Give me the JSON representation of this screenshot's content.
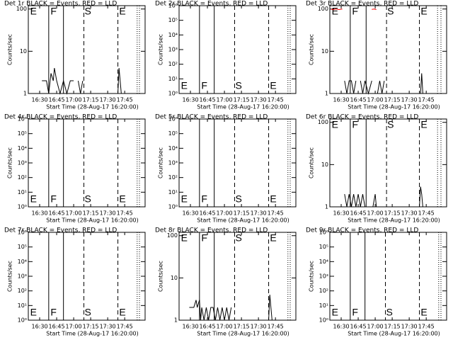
{
  "chart_data": [
    {
      "type": "line",
      "title": "Det 1r BLACK = Events, RED = LLD",
      "ylabel": "Counts/sec",
      "xlabel": "Start Time (28-Aug-17 16:20:00)",
      "log_y": true,
      "xlim": [
        0,
        103
      ],
      "xticks": [
        {
          "value": 10,
          "label": "16:30"
        },
        {
          "value": 25,
          "label": "16:45"
        },
        {
          "value": 40,
          "label": "17:00"
        },
        {
          "value": 55,
          "label": "17:15"
        },
        {
          "value": 70,
          "label": "17:30"
        },
        {
          "value": 85,
          "label": "17:45"
        }
      ],
      "ylim": [
        1,
        120
      ],
      "yticks": [
        1,
        10,
        100
      ],
      "lines": [
        {
          "x": 18,
          "style": "solid"
        },
        {
          "x": 31,
          "style": "solid"
        },
        {
          "x": 49,
          "style": "dashed"
        },
        {
          "x": 79,
          "style": "dashed"
        },
        {
          "x": 96,
          "style": "dotted"
        },
        {
          "x": 98,
          "style": "dotted"
        }
      ],
      "events": [
        {
          "label": "E",
          "x": 1
        },
        {
          "label": "F",
          "x": 19
        },
        {
          "label": "S",
          "x": 49
        },
        {
          "label": "E",
          "x": 79.5
        }
      ],
      "series": [
        {
          "color": "#000000",
          "x": [
            12,
            16,
            18,
            20,
            22,
            23,
            25,
            28,
            31,
            34,
            37,
            40,
            42,
            44,
            46,
            48,
            49,
            79,
            80,
            81,
            82
          ],
          "values": [
            2,
            2,
            1,
            3,
            2,
            4,
            2,
            1,
            2,
            1,
            2,
            2,
            null,
            2,
            1,
            2,
            null,
            1,
            4,
            2,
            1
          ]
        }
      ]
    },
    {
      "type": "line",
      "title": "Det 2r BLACK = Events, RED = LLD",
      "ylabel": "Counts/sec",
      "xlabel": "Start Time (28-Aug-17 16:20:00)",
      "log_y": true,
      "xlim": [
        0,
        103
      ],
      "xticks": [
        {
          "value": 10,
          "label": "16:30"
        },
        {
          "value": 25,
          "label": "16:45"
        },
        {
          "value": 40,
          "label": "17:00"
        },
        {
          "value": 55,
          "label": "17:15"
        },
        {
          "value": 70,
          "label": "17:30"
        },
        {
          "value": 85,
          "label": "17:45"
        }
      ],
      "ylim": [
        1,
        1000000
      ],
      "yticks": [
        {
          "value": 1,
          "label": "10⁰"
        },
        {
          "value": 10,
          "label": "10¹"
        },
        {
          "value": 100,
          "label": "10²"
        },
        {
          "value": 1000,
          "label": "10³"
        },
        {
          "value": 10000,
          "label": "10⁴"
        },
        {
          "value": 100000,
          "label": "10⁵"
        },
        {
          "value": 1000000,
          "label": "10⁶"
        }
      ],
      "lines": [
        {
          "x": 18,
          "style": "solid"
        },
        {
          "x": 31,
          "style": "solid"
        },
        {
          "x": 49,
          "style": "dashed"
        },
        {
          "x": 79,
          "style": "dashed"
        },
        {
          "x": 96,
          "style": "dotted"
        },
        {
          "x": 98,
          "style": "dotted"
        }
      ],
      "events": [
        {
          "label": "E",
          "x": 1
        },
        {
          "label": "F",
          "x": 19
        },
        {
          "label": "S",
          "x": 49
        },
        {
          "label": "E",
          "x": 79.5
        }
      ],
      "series": []
    },
    {
      "type": "line",
      "title": "Det 3r BLACK = Events, RED = LLD",
      "ylabel": "Counts/sec",
      "xlabel": "Start Time (28-Aug-17 16:20:00)",
      "log_y": true,
      "xlim": [
        0,
        103
      ],
      "xticks": [
        {
          "value": 10,
          "label": "16:30"
        },
        {
          "value": 25,
          "label": "16:45"
        },
        {
          "value": 40,
          "label": "17:00"
        },
        {
          "value": 55,
          "label": "17:15"
        },
        {
          "value": 70,
          "label": "17:30"
        },
        {
          "value": 85,
          "label": "17:45"
        }
      ],
      "ylim": [
        1,
        120
      ],
      "yticks": [
        1,
        10,
        100
      ],
      "lines": [
        {
          "x": 18,
          "style": "solid"
        },
        {
          "x": 32,
          "style": "solid"
        },
        {
          "x": 50,
          "style": "dashed"
        },
        {
          "x": 79,
          "style": "dashed"
        },
        {
          "x": 95,
          "style": "dotted"
        },
        {
          "x": 98,
          "style": "dotted"
        }
      ],
      "events": [
        {
          "label": "E",
          "x": 1
        },
        {
          "label": "F",
          "x": 19
        },
        {
          "label": "S",
          "x": 50
        },
        {
          "label": "E",
          "x": 79.5
        }
      ],
      "series": [
        {
          "color": "#000000",
          "x": [
            13,
            15,
            17,
            19,
            21,
            23,
            null,
            27,
            29,
            31,
            34,
            37,
            40,
            42,
            44,
            46,
            48,
            79,
            80,
            81,
            82
          ],
          "values": [
            2,
            1,
            2,
            2,
            1,
            2,
            null,
            2,
            1,
            2,
            1,
            2,
            null,
            1,
            2,
            1,
            2,
            null,
            1,
            3,
            1
          ]
        },
        {
          "color": "#ff0000",
          "x": [
            1,
            3,
            5,
            8,
            11,
            null,
            37,
            39,
            41
          ],
          "values": [
            100,
            96,
            100,
            97,
            100,
            null,
            98,
            100,
            97
          ]
        }
      ]
    },
    {
      "type": "line",
      "title": "Det 4r BLACK = Events, RED = LLD",
      "ylabel": "Counts/sec",
      "xlabel": "Start Time (28-Aug-17 16:20:00)",
      "log_y": true,
      "xlim": [
        0,
        103
      ],
      "xticks": [
        {
          "value": 10,
          "label": "16:30"
        },
        {
          "value": 25,
          "label": "16:45"
        },
        {
          "value": 40,
          "label": "17:00"
        },
        {
          "value": 55,
          "label": "17:15"
        },
        {
          "value": 70,
          "label": "17:30"
        },
        {
          "value": 85,
          "label": "17:45"
        }
      ],
      "ylim": [
        1,
        1000000
      ],
      "yticks": [
        {
          "value": 1,
          "label": "10⁰"
        },
        {
          "value": 10,
          "label": "10¹"
        },
        {
          "value": 100,
          "label": "10²"
        },
        {
          "value": 1000,
          "label": "10³"
        },
        {
          "value": 10000,
          "label": "10⁴"
        },
        {
          "value": 100000,
          "label": "10⁵"
        },
        {
          "value": 1000000,
          "label": "10⁶"
        }
      ],
      "lines": [
        {
          "x": 18,
          "style": "solid"
        },
        {
          "x": 31,
          "style": "solid"
        },
        {
          "x": 49,
          "style": "dashed"
        },
        {
          "x": 79,
          "style": "dashed"
        },
        {
          "x": 96,
          "style": "dotted"
        },
        {
          "x": 98,
          "style": "dotted"
        }
      ],
      "events": [
        {
          "label": "E",
          "x": 1
        },
        {
          "label": "F",
          "x": 19
        },
        {
          "label": "S",
          "x": 49
        },
        {
          "label": "E",
          "x": 79.5
        }
      ],
      "series": []
    },
    {
      "type": "line",
      "title": "Det 5r BLACK = Events, RED = LLD",
      "ylabel": "Counts/sec",
      "xlabel": "Start Time (28-Aug-17 16:20:00)",
      "log_y": true,
      "xlim": [
        0,
        103
      ],
      "xticks": [
        {
          "value": 10,
          "label": "16:30"
        },
        {
          "value": 25,
          "label": "16:45"
        },
        {
          "value": 40,
          "label": "17:00"
        },
        {
          "value": 55,
          "label": "17:15"
        },
        {
          "value": 70,
          "label": "17:30"
        },
        {
          "value": 85,
          "label": "17:45"
        }
      ],
      "ylim": [
        1,
        1000000
      ],
      "yticks": [
        {
          "value": 1,
          "label": "10⁰"
        },
        {
          "value": 10,
          "label": "10¹"
        },
        {
          "value": 100,
          "label": "10²"
        },
        {
          "value": 1000,
          "label": "10³"
        },
        {
          "value": 10000,
          "label": "10⁴"
        },
        {
          "value": 100000,
          "label": "10⁵"
        },
        {
          "value": 1000000,
          "label": "10⁶"
        }
      ],
      "lines": [
        {
          "x": 18,
          "style": "solid"
        },
        {
          "x": 31,
          "style": "solid"
        },
        {
          "x": 49,
          "style": "dashed"
        },
        {
          "x": 79,
          "style": "dashed"
        },
        {
          "x": 96,
          "style": "dotted"
        },
        {
          "x": 98,
          "style": "dotted"
        }
      ],
      "events": [
        {
          "label": "E",
          "x": 1
        },
        {
          "label": "F",
          "x": 19
        },
        {
          "label": "S",
          "x": 49
        },
        {
          "label": "E",
          "x": 79.5
        }
      ],
      "series": []
    },
    {
      "type": "line",
      "title": "Det 6r BLACK = Events, RED = LLD",
      "ylabel": "Counts/sec",
      "xlabel": "Start Time (28-Aug-17 16:20:00)",
      "log_y": true,
      "xlim": [
        0,
        103
      ],
      "xticks": [
        {
          "value": 10,
          "label": "16:30"
        },
        {
          "value": 25,
          "label": "16:45"
        },
        {
          "value": 40,
          "label": "17:00"
        },
        {
          "value": 55,
          "label": "17:15"
        },
        {
          "value": 70,
          "label": "17:30"
        },
        {
          "value": 85,
          "label": "17:45"
        }
      ],
      "ylim": [
        1,
        120
      ],
      "yticks": [
        1,
        10,
        100
      ],
      "lines": [
        {
          "x": 18,
          "style": "solid"
        },
        {
          "x": 32,
          "style": "solid"
        },
        {
          "x": 50,
          "style": "dashed"
        },
        {
          "x": 79,
          "style": "dashed"
        },
        {
          "x": 95,
          "style": "dotted"
        },
        {
          "x": 98,
          "style": "dotted"
        }
      ],
      "events": [
        {
          "label": "E",
          "x": 1
        },
        {
          "label": "F",
          "x": 19
        },
        {
          "label": "S",
          "x": 50
        },
        {
          "label": "E",
          "x": 79.5
        }
      ],
      "series": [
        {
          "color": "#000000",
          "x": [
            13,
            15,
            17,
            19,
            21,
            23,
            25,
            27,
            29,
            31,
            null,
            38,
            40,
            41,
            null,
            79,
            80,
            81,
            82
          ],
          "values": [
            2,
            1,
            2,
            1,
            2,
            1,
            2,
            1,
            2,
            1,
            null,
            1,
            2,
            1,
            null,
            1,
            3,
            2,
            1
          ]
        }
      ]
    },
    {
      "type": "line",
      "title": "Det 7r BLACK = Events, RED = LLD",
      "ylabel": "Counts/sec",
      "xlabel": "Start Time (28-Aug-17 16:20:00)",
      "log_y": true,
      "xlim": [
        0,
        103
      ],
      "xticks": [
        {
          "value": 10,
          "label": "16:30"
        },
        {
          "value": 25,
          "label": "16:45"
        },
        {
          "value": 40,
          "label": "17:00"
        },
        {
          "value": 55,
          "label": "17:15"
        },
        {
          "value": 70,
          "label": "17:30"
        },
        {
          "value": 85,
          "label": "17:45"
        }
      ],
      "ylim": [
        1,
        1000000
      ],
      "yticks": [
        {
          "value": 1,
          "label": "10⁰"
        },
        {
          "value": 10,
          "label": "10¹"
        },
        {
          "value": 100,
          "label": "10²"
        },
        {
          "value": 1000,
          "label": "10³"
        },
        {
          "value": 10000,
          "label": "10⁴"
        },
        {
          "value": 100000,
          "label": "10⁵"
        },
        {
          "value": 1000000,
          "label": "10⁶"
        }
      ],
      "lines": [
        {
          "x": 18,
          "style": "solid"
        },
        {
          "x": 31,
          "style": "solid"
        },
        {
          "x": 49,
          "style": "dashed"
        },
        {
          "x": 79,
          "style": "dashed"
        },
        {
          "x": 96,
          "style": "dotted"
        },
        {
          "x": 98,
          "style": "dotted"
        }
      ],
      "events": [
        {
          "label": "E",
          "x": 1
        },
        {
          "label": "F",
          "x": 19
        },
        {
          "label": "S",
          "x": 49
        },
        {
          "label": "E",
          "x": 79.5
        }
      ],
      "series": []
    },
    {
      "type": "line",
      "title": "Det 8r BLACK = Events, RED = LLD",
      "ylabel": "Counts/sec",
      "xlabel": "Start Time (28-Aug-17 16:20:00)",
      "log_y": true,
      "xlim": [
        0,
        103
      ],
      "xticks": [
        {
          "value": 10,
          "label": "16:30"
        },
        {
          "value": 25,
          "label": "16:45"
        },
        {
          "value": 40,
          "label": "17:00"
        },
        {
          "value": 55,
          "label": "17:15"
        },
        {
          "value": 70,
          "label": "17:30"
        },
        {
          "value": 85,
          "label": "17:45"
        }
      ],
      "ylim": [
        1,
        120
      ],
      "yticks": [
        1,
        10,
        100
      ],
      "lines": [
        {
          "x": 18,
          "style": "solid"
        },
        {
          "x": 31,
          "style": "solid"
        },
        {
          "x": 49,
          "style": "dashed"
        },
        {
          "x": 79,
          "style": "dashed"
        },
        {
          "x": 96,
          "style": "dotted"
        },
        {
          "x": 98,
          "style": "dotted"
        }
      ],
      "events": [
        {
          "label": "E",
          "x": 1
        },
        {
          "label": "F",
          "x": 19
        },
        {
          "label": "S",
          "x": 49
        },
        {
          "label": "E",
          "x": 79.5
        }
      ],
      "series": [
        {
          "color": "#000000",
          "x": [
            9,
            13,
            15,
            16,
            18,
            19,
            20,
            22,
            24,
            26,
            28,
            30,
            32,
            34,
            36,
            38,
            40,
            42,
            44,
            46,
            null,
            79,
            80,
            81,
            82
          ],
          "values": [
            2,
            2,
            3,
            2,
            3,
            1,
            2,
            1,
            2,
            1,
            2,
            2,
            1,
            2,
            1,
            2,
            1,
            2,
            1,
            2,
            null,
            1,
            4,
            2,
            1
          ]
        }
      ]
    },
    {
      "type": "line",
      "title": "Det 9r BLACK = Events, RED = LLD",
      "ylabel": "Counts/sec",
      "xlabel": "Start Time (28-Aug-17 16:20:00)",
      "log_y": true,
      "xlim": [
        0,
        103
      ],
      "xticks": [
        {
          "value": 10,
          "label": "16:30"
        },
        {
          "value": 25,
          "label": "16:45"
        },
        {
          "value": 40,
          "label": "17:00"
        },
        {
          "value": 55,
          "label": "17:15"
        },
        {
          "value": 70,
          "label": "17:30"
        },
        {
          "value": 85,
          "label": "17:45"
        }
      ],
      "ylim": [
        1,
        1000000
      ],
      "yticks": [
        {
          "value": 1,
          "label": "10⁰"
        },
        {
          "value": 10,
          "label": "10¹"
        },
        {
          "value": 100,
          "label": "10²"
        },
        {
          "value": 1000,
          "label": "10³"
        },
        {
          "value": 10000,
          "label": "10⁴"
        },
        {
          "value": 100000,
          "label": "10⁵"
        },
        {
          "value": 1000000,
          "label": "10⁶"
        }
      ],
      "lines": [
        {
          "x": 18,
          "style": "solid"
        },
        {
          "x": 31,
          "style": "solid"
        },
        {
          "x": 49,
          "style": "dashed"
        },
        {
          "x": 79,
          "style": "dashed"
        },
        {
          "x": 96,
          "style": "dotted"
        },
        {
          "x": 98,
          "style": "dotted"
        }
      ],
      "events": [
        {
          "label": "E",
          "x": 1
        },
        {
          "label": "F",
          "x": 19
        },
        {
          "label": "S",
          "x": 49
        },
        {
          "label": "E",
          "x": 79.5
        }
      ],
      "series": []
    }
  ]
}
